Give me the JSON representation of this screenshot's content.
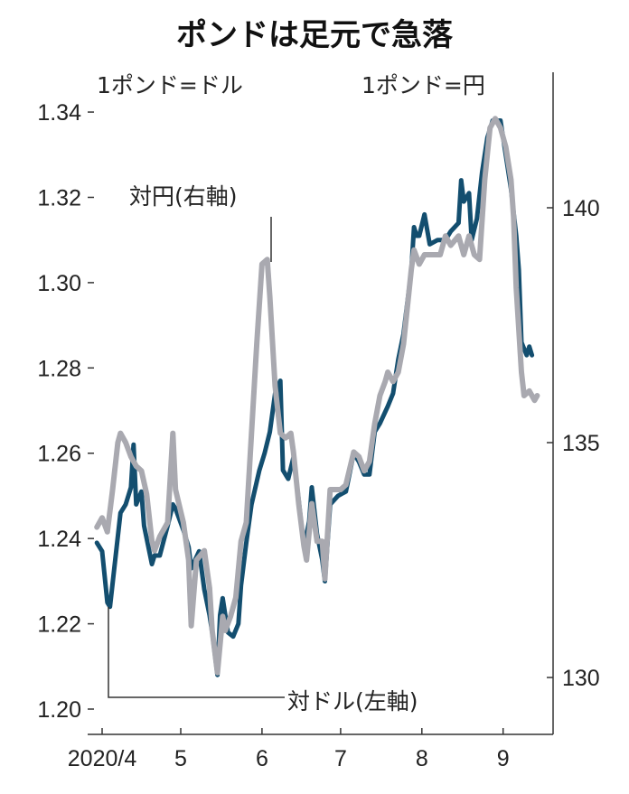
{
  "chart_data": {
    "type": "line",
    "title": "ポンドは足元で急落",
    "left_axis": {
      "unit_label": "1ポンド=ドル",
      "ylim": [
        1.2,
        1.34
      ],
      "ticks": [
        "1.20",
        "1.22",
        "1.24",
        "1.26",
        "1.28",
        "1.30",
        "1.32",
        "1.34"
      ]
    },
    "right_axis": {
      "unit_label": "1ポンド=円",
      "ylim": [
        128.8,
        142.2
      ],
      "ticks": [
        "130",
        "135",
        "140"
      ]
    },
    "x_ticks": [
      {
        "label": "2020/4",
        "date": "2020-04-01"
      },
      {
        "label": "5",
        "date": "2020-05-01"
      },
      {
        "label": "6",
        "date": "2020-06-01"
      },
      {
        "label": "7",
        "date": "2020-07-01"
      },
      {
        "label": "8",
        "date": "2020-08-01"
      },
      {
        "label": "9",
        "date": "2020-09-01"
      }
    ],
    "grid": false,
    "colors": {
      "usd": "#134e6f",
      "jpy": "#a9a9b0"
    },
    "series": [
      {
        "name": "対ドル(左軸)",
        "axis": "left",
        "points": [
          [
            "2020-03-30",
            1.239
          ],
          [
            "2020-04-01",
            1.237
          ],
          [
            "2020-04-03",
            1.225
          ],
          [
            "2020-04-04",
            1.224
          ],
          [
            "2020-04-06",
            1.235
          ],
          [
            "2020-04-08",
            1.246
          ],
          [
            "2020-04-10",
            1.248
          ],
          [
            "2020-04-12",
            1.252
          ],
          [
            "2020-04-13",
            1.262
          ],
          [
            "2020-04-14",
            1.248
          ],
          [
            "2020-04-16",
            1.251
          ],
          [
            "2020-04-17",
            1.243
          ],
          [
            "2020-04-20",
            1.234
          ],
          [
            "2020-04-21",
            1.236
          ],
          [
            "2020-04-23",
            1.236
          ],
          [
            "2020-04-26",
            1.243
          ],
          [
            "2020-04-28",
            1.248
          ],
          [
            "2020-04-29",
            1.247
          ],
          [
            "2020-05-02",
            1.242
          ],
          [
            "2020-05-04",
            1.238
          ],
          [
            "2020-05-05",
            1.233
          ],
          [
            "2020-05-08",
            1.237
          ],
          [
            "2020-05-10",
            1.228
          ],
          [
            "2020-05-12",
            1.222
          ],
          [
            "2020-05-13",
            1.218
          ],
          [
            "2020-05-15",
            1.208
          ],
          [
            "2020-05-16",
            1.222
          ],
          [
            "2020-05-17",
            1.226
          ],
          [
            "2020-05-19",
            1.218
          ],
          [
            "2020-05-21",
            1.217
          ],
          [
            "2020-05-23",
            1.22
          ],
          [
            "2020-05-24",
            1.229
          ],
          [
            "2020-05-26",
            1.239
          ],
          [
            "2020-05-28",
            1.248
          ],
          [
            "2020-05-31",
            1.256
          ],
          [
            "2020-06-02",
            1.26
          ],
          [
            "2020-06-04",
            1.265
          ],
          [
            "2020-06-06",
            1.274
          ],
          [
            "2020-06-08",
            1.277
          ],
          [
            "2020-06-09",
            1.256
          ],
          [
            "2020-06-11",
            1.254
          ],
          [
            "2020-06-13",
            1.259
          ],
          [
            "2020-06-15",
            1.249
          ],
          [
            "2020-06-17",
            1.238
          ],
          [
            "2020-06-19",
            1.244
          ],
          [
            "2020-06-20",
            1.252
          ],
          [
            "2020-06-22",
            1.241
          ],
          [
            "2020-06-24",
            1.235
          ],
          [
            "2020-06-25",
            1.23
          ],
          [
            "2020-06-27",
            1.248
          ],
          [
            "2020-06-30",
            1.25
          ],
          [
            "2020-07-03",
            1.251
          ],
          [
            "2020-07-06",
            1.26
          ],
          [
            "2020-07-08",
            1.258
          ],
          [
            "2020-07-10",
            1.255
          ],
          [
            "2020-07-12",
            1.255
          ],
          [
            "2020-07-14",
            1.265
          ],
          [
            "2020-07-16",
            1.267
          ],
          [
            "2020-07-19",
            1.271
          ],
          [
            "2020-07-21",
            1.274
          ],
          [
            "2020-07-23",
            1.282
          ],
          [
            "2020-07-25",
            1.288
          ],
          [
            "2020-07-28",
            1.303
          ],
          [
            "2020-07-29",
            1.313
          ],
          [
            "2020-07-30",
            1.311
          ],
          [
            "2020-07-31",
            1.311
          ],
          [
            "2020-08-02",
            1.316
          ],
          [
            "2020-08-04",
            1.309
          ],
          [
            "2020-08-07",
            1.31
          ],
          [
            "2020-08-10",
            1.31
          ],
          [
            "2020-08-12",
            1.312
          ],
          [
            "2020-08-15",
            1.314
          ],
          [
            "2020-08-16",
            1.324
          ],
          [
            "2020-08-17",
            1.319
          ],
          [
            "2020-08-19",
            1.321
          ],
          [
            "2020-08-20",
            1.31
          ],
          [
            "2020-08-22",
            1.315
          ],
          [
            "2020-08-24",
            1.326
          ],
          [
            "2020-08-26",
            1.334
          ],
          [
            "2020-08-28",
            1.338
          ],
          [
            "2020-08-31",
            1.338
          ],
          [
            "2020-09-01",
            1.334
          ],
          [
            "2020-09-02",
            1.33
          ],
          [
            "2020-09-04",
            1.322
          ],
          [
            "2020-09-06",
            1.311
          ],
          [
            "2020-09-07",
            1.303
          ],
          [
            "2020-09-08",
            1.286
          ],
          [
            "2020-09-10",
            1.283
          ],
          [
            "2020-09-11",
            1.285
          ],
          [
            "2020-09-12",
            1.283
          ]
        ]
      },
      {
        "name": "対円(右軸)",
        "axis": "right",
        "points": [
          [
            "2020-03-30",
            133.2
          ],
          [
            "2020-04-01",
            133.4
          ],
          [
            "2020-04-03",
            133.1
          ],
          [
            "2020-04-05",
            134.0
          ],
          [
            "2020-04-07",
            135.0
          ],
          [
            "2020-04-08",
            135.2
          ],
          [
            "2020-04-10",
            135.0
          ],
          [
            "2020-04-12",
            134.7
          ],
          [
            "2020-04-14",
            134.5
          ],
          [
            "2020-04-16",
            134.4
          ],
          [
            "2020-04-18",
            133.9
          ],
          [
            "2020-04-20",
            132.9
          ],
          [
            "2020-04-21",
            132.7
          ],
          [
            "2020-04-23",
            133.0
          ],
          [
            "2020-04-26",
            133.3
          ],
          [
            "2020-04-28",
            135.2
          ],
          [
            "2020-04-29",
            134.0
          ],
          [
            "2020-05-02",
            133.3
          ],
          [
            "2020-05-04",
            132.5
          ],
          [
            "2020-05-05",
            131.1
          ],
          [
            "2020-05-07",
            132.5
          ],
          [
            "2020-05-10",
            132.7
          ],
          [
            "2020-05-12",
            131.9
          ],
          [
            "2020-05-13",
            131.0
          ],
          [
            "2020-05-15",
            130.1
          ],
          [
            "2020-05-17",
            131.3
          ],
          [
            "2020-05-18",
            131.0
          ],
          [
            "2020-05-20",
            131.3
          ],
          [
            "2020-05-22",
            131.7
          ],
          [
            "2020-05-24",
            132.9
          ],
          [
            "2020-05-26",
            133.3
          ],
          [
            "2020-05-28",
            135.2
          ],
          [
            "2020-05-30",
            137.1
          ],
          [
            "2020-06-01",
            138.8
          ],
          [
            "2020-06-03",
            138.9
          ],
          [
            "2020-06-04",
            138.1
          ],
          [
            "2020-06-06",
            136.2
          ],
          [
            "2020-06-08",
            135.2
          ],
          [
            "2020-06-10",
            135.1
          ],
          [
            "2020-06-12",
            135.2
          ],
          [
            "2020-06-13",
            134.8
          ],
          [
            "2020-06-15",
            133.7
          ],
          [
            "2020-06-17",
            132.8
          ],
          [
            "2020-06-18",
            132.5
          ],
          [
            "2020-06-20",
            133.7
          ],
          [
            "2020-06-22",
            132.9
          ],
          [
            "2020-06-24",
            132.9
          ],
          [
            "2020-06-25",
            132.1
          ],
          [
            "2020-06-27",
            134.0
          ],
          [
            "2020-07-01",
            134.0
          ],
          [
            "2020-07-03",
            134.1
          ],
          [
            "2020-07-06",
            134.8
          ],
          [
            "2020-07-08",
            134.7
          ],
          [
            "2020-07-10",
            134.4
          ],
          [
            "2020-07-12",
            134.6
          ],
          [
            "2020-07-14",
            135.4
          ],
          [
            "2020-07-16",
            136.0
          ],
          [
            "2020-07-18",
            136.3
          ],
          [
            "2020-07-19",
            136.5
          ],
          [
            "2020-07-21",
            136.3
          ],
          [
            "2020-07-23",
            136.5
          ],
          [
            "2020-07-25",
            137.1
          ],
          [
            "2020-07-28",
            138.7
          ],
          [
            "2020-07-29",
            139.1
          ],
          [
            "2020-07-31",
            138.8
          ],
          [
            "2020-08-02",
            139.0
          ],
          [
            "2020-08-05",
            139.0
          ],
          [
            "2020-08-08",
            139.0
          ],
          [
            "2020-08-10",
            139.4
          ],
          [
            "2020-08-12",
            139.2
          ],
          [
            "2020-08-15",
            139.4
          ],
          [
            "2020-08-17",
            139.0
          ],
          [
            "2020-08-19",
            139.4
          ],
          [
            "2020-08-21",
            139.0
          ],
          [
            "2020-08-23",
            138.9
          ],
          [
            "2020-08-25",
            140.6
          ],
          [
            "2020-08-27",
            141.7
          ],
          [
            "2020-08-29",
            141.9
          ],
          [
            "2020-08-31",
            141.7
          ],
          [
            "2020-09-02",
            141.3
          ],
          [
            "2020-09-04",
            140.6
          ],
          [
            "2020-09-05",
            139.8
          ],
          [
            "2020-09-06",
            138.3
          ],
          [
            "2020-09-08",
            136.5
          ],
          [
            "2020-09-09",
            136.0
          ],
          [
            "2020-09-11",
            136.1
          ],
          [
            "2020-09-12",
            136.0
          ],
          [
            "2020-09-13",
            135.9
          ],
          [
            "2020-09-14",
            136.0
          ]
        ]
      }
    ],
    "annotations": {
      "jpy": "対円(右軸)",
      "usd": "対ドル(左軸)"
    }
  }
}
